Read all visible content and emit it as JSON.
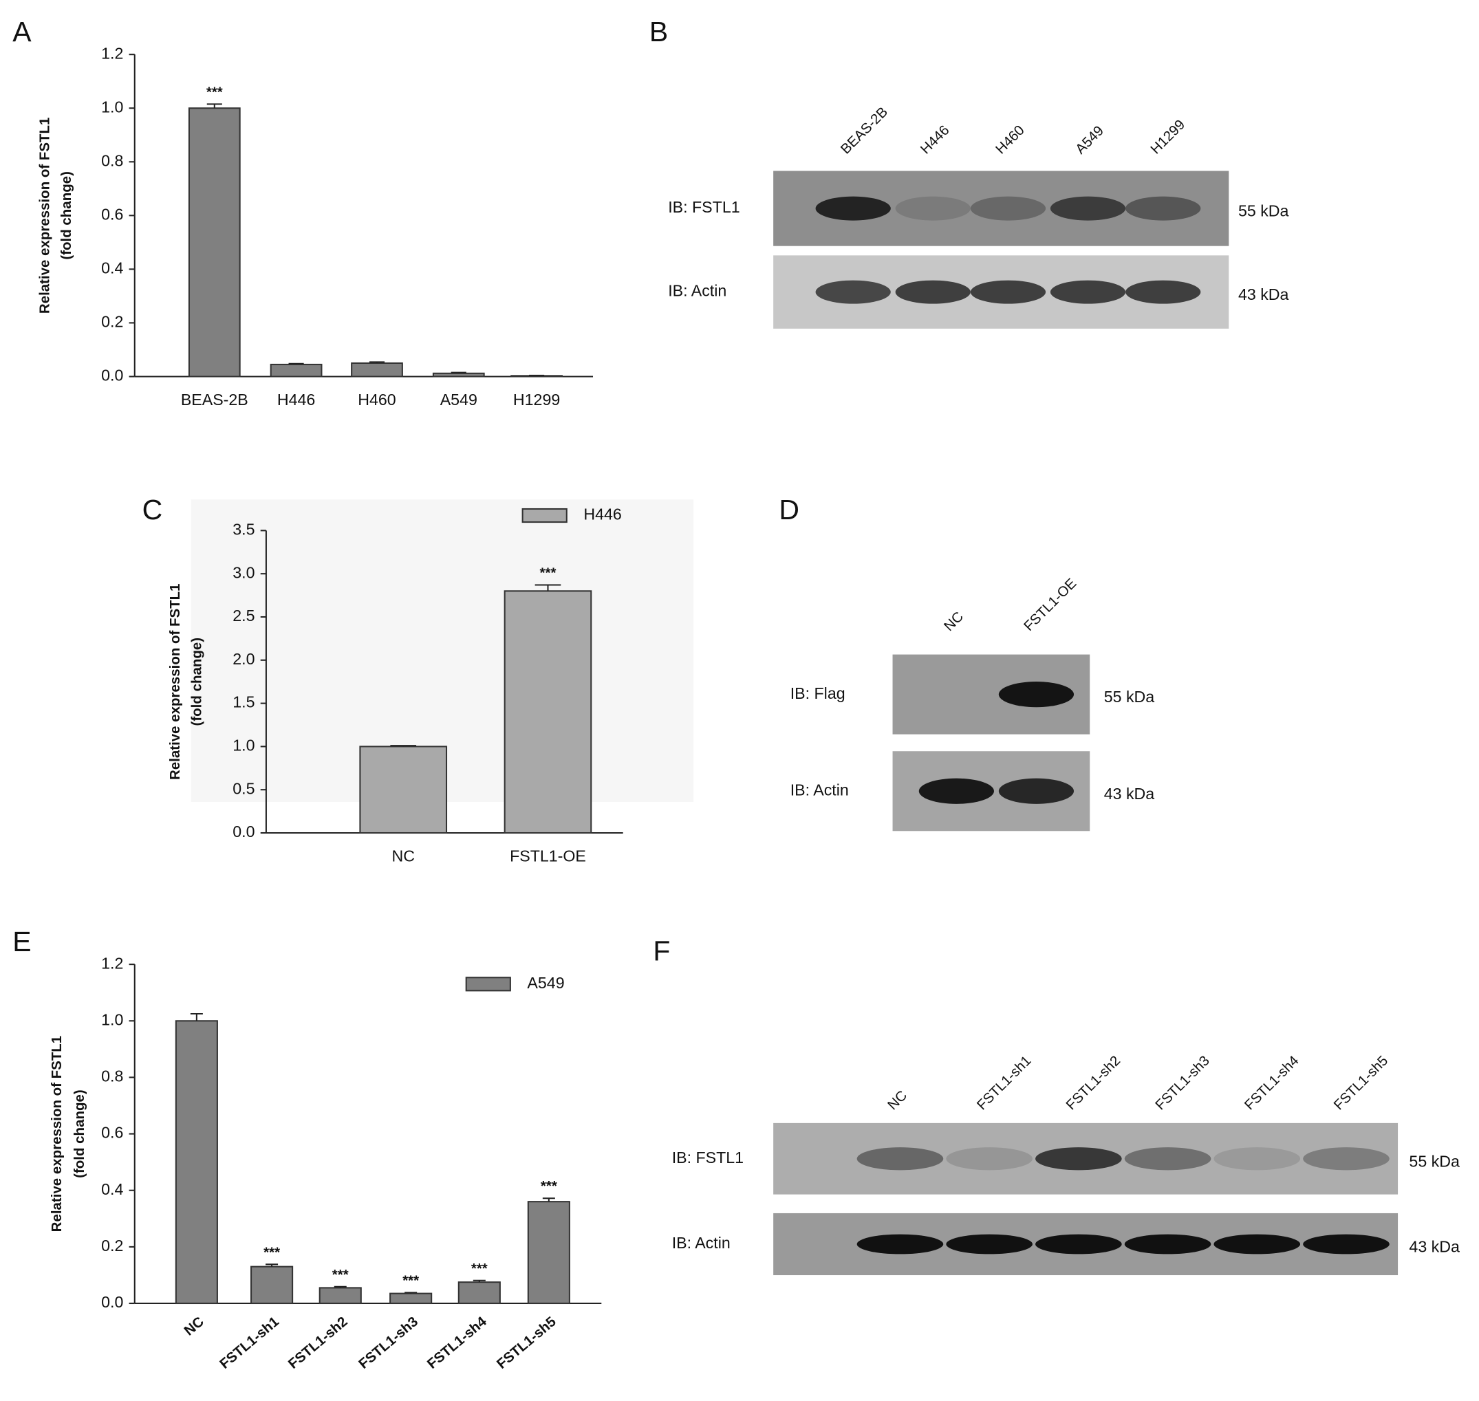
{
  "panels": [
    "A",
    "B",
    "C",
    "D",
    "E",
    "F"
  ],
  "chart_data": [
    {
      "type": "bar",
      "y_label": [
        "Relative expression of FSTL1",
        "(fold change)"
      ],
      "categories": [
        "BEAS-2B",
        "H446",
        "H460",
        "A549",
        "H1299"
      ],
      "values": [
        1.0,
        0.045,
        0.05,
        0.012,
        0.003
      ],
      "errors": [
        0.015,
        0.003,
        0.004,
        0.003,
        0.001
      ],
      "annotations": [
        "***",
        null,
        null,
        null,
        null
      ],
      "color": "#808080",
      "ylim": [
        0,
        1.2
      ],
      "yticks": [
        {
          "value": 0,
          "label": "0.0"
        },
        0.2,
        0.4,
        0.6,
        0.8,
        {
          "value": 1,
          "label": "1.0"
        },
        1.2
      ]
    },
    {
      "type": "bar",
      "y_label": [
        "Relative expression of FSTL1",
        "(fold change)"
      ],
      "categories": [
        "NC",
        "FSTL1-OE"
      ],
      "series": [
        {
          "name": "H446",
          "color": "#a9a9a9",
          "values": [
            1.0,
            2.8
          ],
          "errors": [
            0.01,
            0.07
          ]
        }
      ],
      "annotations": [
        null,
        "***"
      ],
      "ylim": [
        0,
        3.5
      ],
      "yticks": [
        {
          "value": 0,
          "label": "0.0"
        },
        0.5,
        {
          "value": 1,
          "label": "1.0"
        },
        1.5,
        {
          "value": 2,
          "label": "2.0"
        },
        2.5,
        {
          "value": 3,
          "label": "3.0"
        },
        3.5
      ]
    },
    {
      "type": "bar",
      "y_label": [
        "Relative expression of FSTL1",
        "(fold change)"
      ],
      "categories": [
        "NC",
        "FSTL1-sh1",
        "FSTL1-sh2",
        "FSTL1-sh3",
        "FSTL1-sh4",
        "FSTL1-sh5"
      ],
      "series": [
        {
          "name": "A549",
          "color": "#808080",
          "values": [
            1.0,
            0.13,
            0.055,
            0.035,
            0.075,
            0.36
          ],
          "errors": [
            0.025,
            0.008,
            0.004,
            0.003,
            0.006,
            0.012
          ]
        }
      ],
      "annotations": [
        null,
        "***",
        "***",
        "***",
        "***",
        "***"
      ],
      "ylim": [
        0,
        1.2
      ],
      "yticks": [
        {
          "value": 0,
          "label": "0.0"
        },
        0.2,
        0.4,
        0.6,
        0.8,
        {
          "value": 1,
          "label": "1.0"
        },
        1.2
      ]
    }
  ],
  "blots": [
    {
      "lanes": [
        "BEAS-2B",
        "H446",
        "H460",
        "A549",
        "H1299"
      ],
      "rows": [
        {
          "label": "IB: FSTL1",
          "size": "55 kDa"
        },
        {
          "label": "IB: Actin",
          "size": "43 kDa"
        }
      ]
    },
    {
      "lanes": [
        "NC",
        "FSTL1-OE"
      ],
      "rows": [
        {
          "label": "IB: Flag",
          "size": "55 kDa"
        },
        {
          "label": "IB: Actin",
          "size": "43 kDa"
        }
      ]
    },
    {
      "lanes": [
        "NC",
        "FSTL1-sh1",
        "FSTL1-sh2",
        "FSTL1-sh3",
        "FSTL1-sh4",
        "FSTL1-sh5"
      ],
      "rows": [
        {
          "label": "IB: FSTL1",
          "size": "55 kDa"
        },
        {
          "label": "IB: Actin",
          "size": "43 kDa"
        }
      ]
    }
  ]
}
